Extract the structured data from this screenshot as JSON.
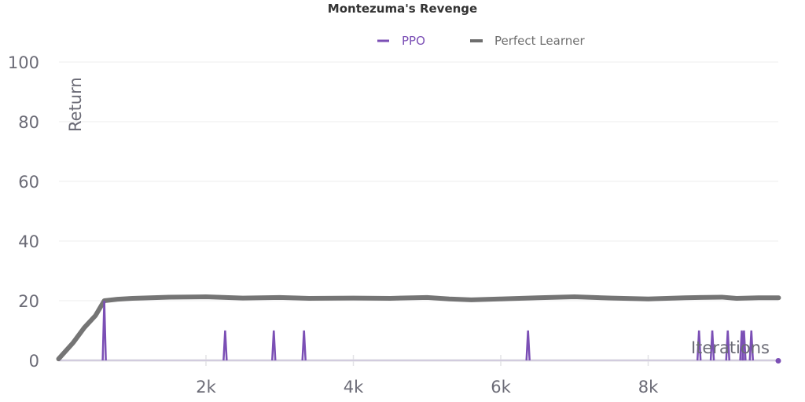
{
  "chart_data": {
    "type": "line",
    "title": "Montezuma's Revenge",
    "xlabel": "Iterations",
    "ylabel": "Return",
    "xlim": [
      0,
      9770
    ],
    "ylim": [
      0,
      100
    ],
    "xticks": [
      {
        "v": 2000,
        "label": "2k"
      },
      {
        "v": 4000,
        "label": "4k"
      },
      {
        "v": 6000,
        "label": "6k"
      },
      {
        "v": 8000,
        "label": "8k"
      }
    ],
    "yticks": [
      {
        "v": 0,
        "label": "0"
      },
      {
        "v": 20,
        "label": "20"
      },
      {
        "v": 40,
        "label": "40"
      },
      {
        "v": 60,
        "label": "60"
      },
      {
        "v": 80,
        "label": "80"
      },
      {
        "v": 100,
        "label": "100"
      }
    ],
    "grid": true,
    "legend": "top-center",
    "series": [
      {
        "name": "PPO",
        "color": "#7b4fb5",
        "spikes": [
          [
            620,
            20
          ],
          [
            2260,
            10
          ],
          [
            2920,
            10
          ],
          [
            3330,
            10
          ],
          [
            6370,
            10
          ],
          [
            8690,
            10
          ],
          [
            8870,
            10
          ],
          [
            9080,
            10
          ],
          [
            9270,
            10
          ],
          [
            9300,
            10
          ],
          [
            9400,
            10
          ]
        ]
      },
      {
        "name": "Perfect Learner",
        "color": "#6e6e6e",
        "points": [
          [
            0,
            0.5
          ],
          [
            200,
            6
          ],
          [
            350,
            11
          ],
          [
            500,
            15
          ],
          [
            620,
            20
          ],
          [
            800,
            20.5
          ],
          [
            1000,
            20.8
          ],
          [
            1500,
            21.2
          ],
          [
            2000,
            21.3
          ],
          [
            2500,
            20.9
          ],
          [
            3000,
            21.1
          ],
          [
            3400,
            20.8
          ],
          [
            4000,
            20.9
          ],
          [
            4500,
            20.8
          ],
          [
            5000,
            21.1
          ],
          [
            5300,
            20.6
          ],
          [
            5600,
            20.3
          ],
          [
            6000,
            20.6
          ],
          [
            6500,
            21
          ],
          [
            7000,
            21.3
          ],
          [
            7500,
            20.9
          ],
          [
            8000,
            20.6
          ],
          [
            8500,
            21
          ],
          [
            9000,
            21.2
          ],
          [
            9200,
            20.8
          ],
          [
            9500,
            21
          ],
          [
            9770,
            21
          ]
        ]
      }
    ]
  }
}
